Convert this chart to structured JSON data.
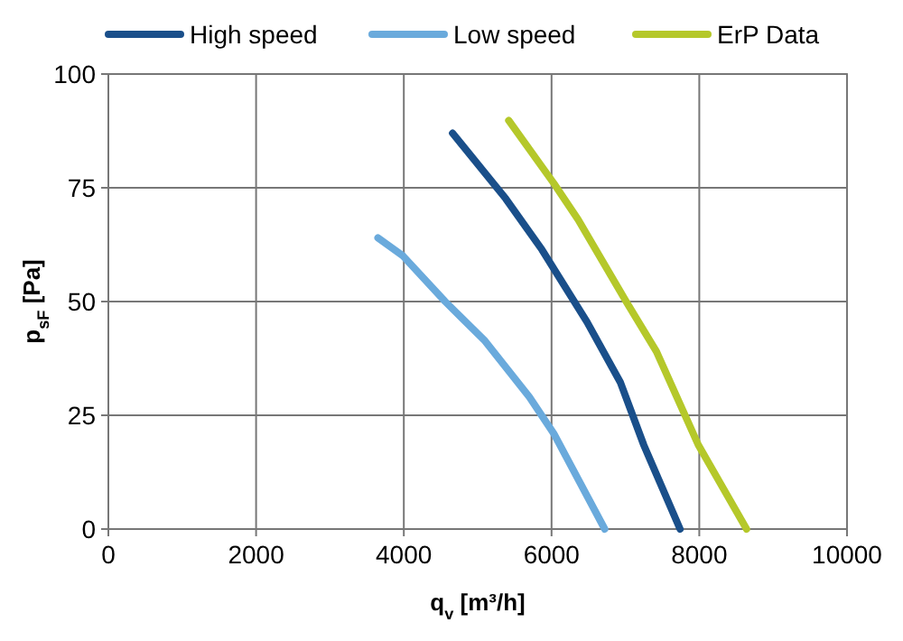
{
  "chart_data": {
    "type": "line",
    "xlabel": "q$_{v}$ [m³/h]",
    "ylabel": "p$_{sF}$ [Pa]",
    "xlim": [
      0,
      10000
    ],
    "xticks": [
      0,
      2000,
      4000,
      6000,
      8000,
      10000
    ],
    "ylim": [
      0,
      100
    ],
    "yticks": [
      0,
      25,
      50,
      75,
      100
    ],
    "grid": true,
    "legend": "top",
    "marker": "none",
    "line_style": "solid",
    "series": [
      {
        "name": "High speed",
        "color": "#1a4f8a",
        "x": [
          4660,
          5380,
          5870,
          6480,
          6930,
          7250,
          7740
        ],
        "values": [
          87,
          72.6,
          61.4,
          45.5,
          32.3,
          18.4,
          0
        ]
      },
      {
        "name": "Low speed",
        "color": "#6aaadc",
        "x": [
          3650,
          3990,
          4560,
          5090,
          5700,
          6030,
          6720
        ],
        "values": [
          64,
          60,
          50,
          41.5,
          29,
          21,
          0
        ]
      },
      {
        "name": "ErP Data",
        "color": "#b5c82a",
        "x": [
          5420,
          6030,
          6360,
          7010,
          7420,
          7990,
          8640
        ],
        "values": [
          89.8,
          76,
          68,
          50,
          39,
          18.4,
          0
        ]
      }
    ]
  }
}
